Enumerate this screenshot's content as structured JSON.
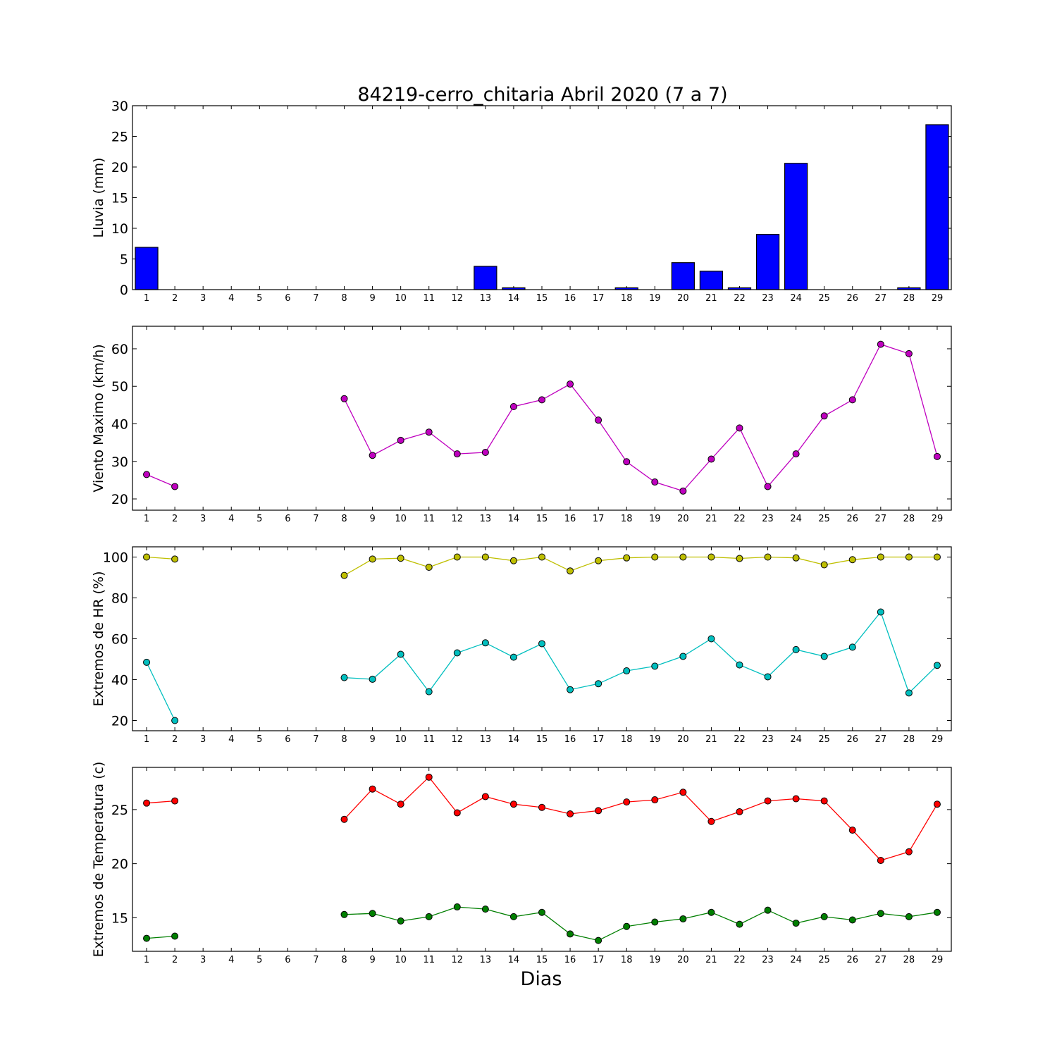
{
  "figure": {
    "title": "84219-cerro_chitaria Abril 2020  (7 a 7)",
    "xlabel": "Dias"
  },
  "chart_data": [
    {
      "type": "bar",
      "ylabel": "Lluvia (mm)",
      "ylim": [
        0,
        30
      ],
      "yticks": [
        0,
        5,
        10,
        15,
        20,
        25,
        30
      ],
      "xlim": [
        0.5,
        29.5
      ],
      "categories": [
        1,
        2,
        3,
        4,
        5,
        6,
        7,
        8,
        9,
        10,
        11,
        12,
        13,
        14,
        15,
        16,
        17,
        18,
        19,
        20,
        21,
        22,
        23,
        24,
        25,
        26,
        27,
        28,
        29
      ],
      "color": "#0000ff",
      "values": [
        6.9,
        0,
        0,
        0,
        0,
        0,
        0,
        0,
        0,
        0,
        0,
        0,
        3.8,
        0.3,
        0,
        0,
        0,
        0.3,
        0,
        4.4,
        3.0,
        0.3,
        9.0,
        20.6,
        0,
        0,
        0,
        0.3,
        26.9
      ]
    },
    {
      "type": "line",
      "ylabel": "Viento Maximo (km/h)",
      "ylim": [
        17,
        66
      ],
      "yticks": [
        20,
        30,
        40,
        50,
        60
      ],
      "xlim": [
        0.5,
        29.5
      ],
      "x": [
        1,
        2,
        3,
        4,
        5,
        6,
        7,
        8,
        9,
        10,
        11,
        12,
        13,
        14,
        15,
        16,
        17,
        18,
        19,
        20,
        21,
        22,
        23,
        24,
        25,
        26,
        27,
        28,
        29
      ],
      "series": [
        {
          "color": "#bf00bf",
          "values": [
            26.5,
            23.3,
            null,
            null,
            null,
            null,
            null,
            46.7,
            31.6,
            35.6,
            37.8,
            32.0,
            32.4,
            44.6,
            46.4,
            50.6,
            41.0,
            29.9,
            24.5,
            22.1,
            30.6,
            38.9,
            23.3,
            32.0,
            42.1,
            46.4,
            61.2,
            58.7,
            31.3
          ]
        }
      ]
    },
    {
      "type": "line",
      "ylabel": "Extremos de HR (%)",
      "ylim": [
        15,
        105
      ],
      "yticks": [
        20,
        40,
        60,
        80,
        100
      ],
      "xlim": [
        0.5,
        29.5
      ],
      "x": [
        1,
        2,
        3,
        4,
        5,
        6,
        7,
        8,
        9,
        10,
        11,
        12,
        13,
        14,
        15,
        16,
        17,
        18,
        19,
        20,
        21,
        22,
        23,
        24,
        25,
        26,
        27,
        28,
        29
      ],
      "series": [
        {
          "color": "#bfbf00",
          "values": [
            100,
            99,
            null,
            null,
            null,
            null,
            null,
            91,
            99,
            99.4,
            95,
            100,
            100,
            98.2,
            100,
            93.2,
            98.2,
            99.6,
            100,
            100,
            100,
            99.3,
            100,
            99.6,
            96.2,
            98.7,
            100,
            100,
            100
          ]
        },
        {
          "color": "#00bfbf",
          "values": [
            48.5,
            20,
            null,
            null,
            null,
            null,
            null,
            41,
            40.2,
            52.4,
            34.1,
            53.1,
            58.0,
            51.0,
            57.6,
            35.1,
            38.0,
            44.3,
            46.6,
            51.4,
            60.0,
            47.2,
            41.4,
            54.7,
            51.4,
            55.9,
            73.1,
            33.5,
            47.0
          ]
        }
      ]
    },
    {
      "type": "line",
      "ylabel": "Extremos de Temperatura (c)",
      "ylim": [
        11.9,
        28.9
      ],
      "yticks": [
        15,
        20,
        25
      ],
      "xlim": [
        0.5,
        29.5
      ],
      "x": [
        1,
        2,
        3,
        4,
        5,
        6,
        7,
        8,
        9,
        10,
        11,
        12,
        13,
        14,
        15,
        16,
        17,
        18,
        19,
        20,
        21,
        22,
        23,
        24,
        25,
        26,
        27,
        28,
        29
      ],
      "series": [
        {
          "color": "#ff0000",
          "values": [
            25.6,
            25.8,
            null,
            null,
            null,
            null,
            null,
            24.1,
            26.9,
            25.5,
            28.0,
            24.7,
            26.2,
            25.5,
            25.2,
            24.6,
            24.9,
            25.7,
            25.9,
            26.6,
            23.9,
            24.8,
            25.8,
            26.0,
            25.8,
            23.1,
            20.3,
            21.1,
            25.5
          ]
        },
        {
          "color": "#007f00",
          "values": [
            13.1,
            13.3,
            null,
            null,
            null,
            null,
            null,
            15.3,
            15.4,
            14.7,
            15.1,
            16.0,
            15.8,
            15.1,
            15.5,
            13.5,
            12.9,
            14.2,
            14.6,
            14.9,
            15.5,
            14.4,
            15.7,
            14.5,
            15.1,
            14.8,
            15.4,
            15.1,
            15.5
          ]
        }
      ]
    }
  ]
}
